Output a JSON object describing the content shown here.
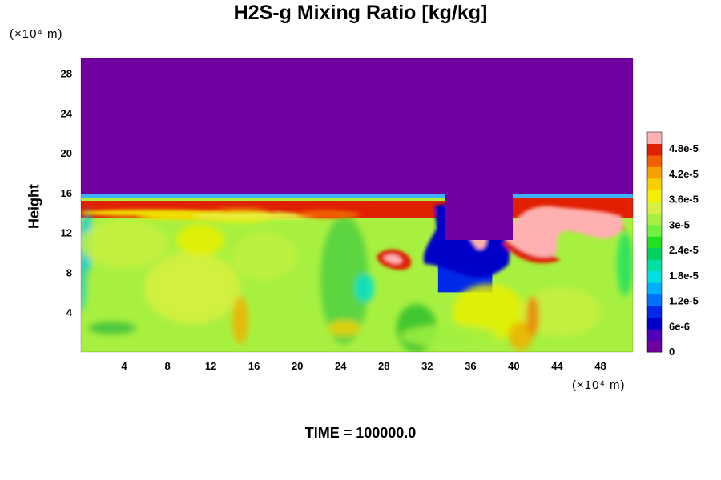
{
  "chart_data": {
    "type": "heatmap",
    "title": "H2S-g Mixing Ratio [kg/kg]",
    "ylabel": "Height",
    "y_unit": "(×10⁴ m)",
    "x_unit": "(×10⁴ m)",
    "footer": "TIME = 100000.0",
    "xlim": [
      0,
      51
    ],
    "ylim": [
      0,
      29.5
    ],
    "x_ticks": [
      4,
      8,
      12,
      16,
      20,
      24,
      28,
      32,
      36,
      40,
      44,
      48
    ],
    "y_ticks": [
      4,
      8,
      12,
      16,
      20,
      24,
      28
    ],
    "colorbar": {
      "min": 0,
      "max": 5.2e-05,
      "tick_values": [
        0,
        6e-06,
        1.2e-05,
        1.8e-05,
        2.4e-05,
        3e-05,
        3.6e-05,
        4.2e-05,
        4.8e-05
      ],
      "tick_labels": [
        "0",
        "6e-6",
        "1.2e-5",
        "1.8e-5",
        "2.4e-5",
        "3e-5",
        "3.6e-5",
        "4.2e-5",
        "4.8e-5"
      ],
      "colors": [
        "#7000a0",
        "#5000b8",
        "#0000c8",
        "#0028e8",
        "#0070ff",
        "#00b0ff",
        "#00e0e0",
        "#00e0a0",
        "#00d060",
        "#20e020",
        "#70f040",
        "#a8f040",
        "#d8f040",
        "#f0f000",
        "#f8d000",
        "#f8a000",
        "#f06000",
        "#e02000",
        "#ffb0b0"
      ]
    },
    "regions": [
      {
        "name": "upper_clear",
        "x_range": [
          0,
          51
        ],
        "y_range": [
          15.5,
          29.5
        ],
        "value": 0
      },
      {
        "name": "inversion_layer",
        "x_range": [
          0,
          51
        ],
        "y_range": [
          13.5,
          15.5
        ],
        "value": 5e-05
      },
      {
        "name": "mixed_layer",
        "x_range": [
          0,
          51
        ],
        "y_range": [
          0,
          13.5
        ],
        "value": 3.3e-05
      },
      {
        "name": "depleted_plume",
        "x_range": [
          33,
          38
        ],
        "y_range": [
          6,
          13
        ],
        "value": 8e-06
      }
    ]
  }
}
